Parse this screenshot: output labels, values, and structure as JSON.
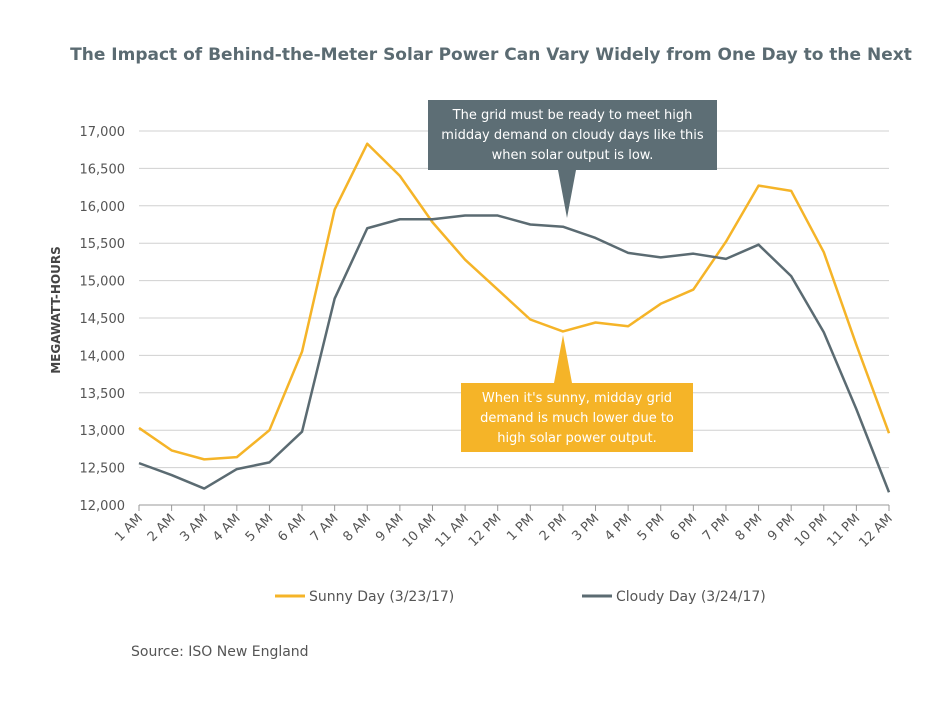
{
  "chart_data": {
    "type": "line",
    "title": "The Impact of Behind-the-Meter Solar Power Can Vary Widely from One Day to the Next",
    "y_label": "MEGAWATT-HOURS",
    "source": "Source: ISO New England",
    "categories": [
      "1 AM",
      "2 AM",
      "3 AM",
      "4 AM",
      "5 AM",
      "6 AM",
      "7 AM",
      "8 AM",
      "9 AM",
      "10 AM",
      "11 AM",
      "12 PM",
      "1 PM",
      "2 PM",
      "3 PM",
      "4 PM",
      "5 PM",
      "6 PM",
      "7 PM",
      "8 PM",
      "9 PM",
      "10 PM",
      "11 PM",
      "12 AM"
    ],
    "series": [
      {
        "name": "Sunny Day (3/23/17)",
        "color": "#f5b428",
        "values": [
          13030,
          12730,
          12610,
          12640,
          13000,
          14050,
          15950,
          16830,
          16400,
          15780,
          15280,
          14880,
          14480,
          14320,
          14440,
          14390,
          14690,
          14880,
          15520,
          16270,
          16200,
          15380,
          14140,
          12960
        ]
      },
      {
        "name": "Cloudy Day (3/24/17)",
        "color": "#5b6b72",
        "values": [
          12560,
          12400,
          12220,
          12480,
          12570,
          12980,
          14760,
          15700,
          15820,
          15820,
          15870,
          15870,
          15750,
          15720,
          15570,
          15370,
          15310,
          15360,
          15290,
          15480,
          15060,
          14310,
          13280,
          12170
        ]
      }
    ],
    "ylim": [
      12000,
      17000
    ],
    "yticks": [
      {
        "value": 12000,
        "label": "12,000"
      },
      {
        "value": 12500,
        "label": "12,500"
      },
      {
        "value": 13000,
        "label": "13,000"
      },
      {
        "value": 13500,
        "label": "13,500"
      },
      {
        "value": 14000,
        "label": "14,000"
      },
      {
        "value": 14500,
        "label": "14,500"
      },
      {
        "value": 15000,
        "label": "15,000"
      },
      {
        "value": 15500,
        "label": "15,500"
      },
      {
        "value": 16000,
        "label": "16,000"
      },
      {
        "value": 16500,
        "label": "16,500"
      },
      {
        "value": 17000,
        "label": "17,000"
      }
    ],
    "grid": true,
    "annotations": [
      {
        "text": "The grid must be ready to meet high midday demand on cloudy days like this when solar output is low.",
        "color": "#5d6e75"
      },
      {
        "text": "When it's sunny, midday grid demand is much lower due to high solar power output.",
        "color": "#f5b428"
      }
    ]
  }
}
